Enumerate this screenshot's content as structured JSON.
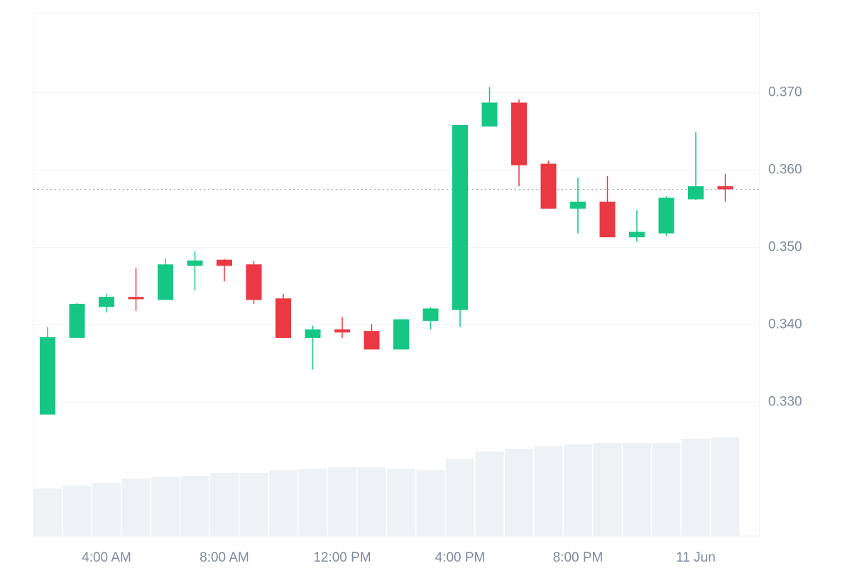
{
  "chart_data": {
    "type": "candlestick",
    "categories": [
      null,
      null,
      "4:00 AM",
      null,
      null,
      null,
      "8:00 AM",
      null,
      null,
      null,
      "12:00 PM",
      null,
      null,
      null,
      "4:00 PM",
      null,
      null,
      null,
      "8:00 PM",
      null,
      null,
      null,
      "11 Jun",
      null
    ],
    "open": [
      0.3284,
      0.3383,
      0.3423,
      0.3436,
      0.3432,
      0.3476,
      0.3484,
      0.3478,
      0.3434,
      0.3383,
      0.3394,
      0.3392,
      0.3368,
      0.3405,
      0.3419,
      0.3656,
      0.3687,
      0.3608,
      0.355,
      0.3559,
      0.3513,
      0.3518,
      0.3562,
      0.3579
    ],
    "high": [
      0.3397,
      0.3428,
      0.344,
      0.3473,
      0.3485,
      0.3495,
      0.3485,
      0.3482,
      0.344,
      0.3399,
      0.341,
      0.3401,
      0.3407,
      0.3423,
      0.3658,
      0.3707,
      0.3691,
      0.3612,
      0.359,
      0.3592,
      0.3548,
      0.3566,
      0.3649,
      0.3595
    ],
    "low": [
      0.3284,
      0.3383,
      0.3416,
      0.3418,
      0.3432,
      0.3445,
      0.3456,
      0.3427,
      0.3383,
      0.3342,
      0.3383,
      0.3368,
      0.3368,
      0.3394,
      0.3397,
      0.3656,
      0.3579,
      0.355,
      0.3518,
      0.3513,
      0.3507,
      0.3515,
      0.3561,
      0.3559
    ],
    "close": [
      0.3384,
      0.3427,
      0.3436,
      0.3433,
      0.3478,
      0.3483,
      0.3476,
      0.3432,
      0.3383,
      0.3394,
      0.339,
      0.3368,
      0.3407,
      0.3421,
      0.3658,
      0.3687,
      0.3606,
      0.355,
      0.3559,
      0.3513,
      0.352,
      0.3564,
      0.3579,
      0.3575
    ],
    "volume": [
      67,
      71,
      75,
      81,
      83,
      85,
      89,
      89,
      93,
      95,
      97,
      97,
      95,
      93,
      109,
      119,
      123,
      127,
      129,
      131,
      131,
      131,
      137,
      139
    ],
    "up_color": "#16c784",
    "down_color": "#ea3943",
    "volume_color": "#eff2f5",
    "last_price": 0.3575,
    "ylim": [
      0.3127,
      0.3803
    ],
    "yticks": [
      {
        "value": 0.33,
        "label": "0.330"
      },
      {
        "value": 0.34,
        "label": "0.340"
      },
      {
        "value": 0.35,
        "label": "0.350"
      },
      {
        "value": 0.36,
        "label": "0.360"
      },
      {
        "value": 0.37,
        "label": "0.370"
      }
    ],
    "grid": true
  }
}
